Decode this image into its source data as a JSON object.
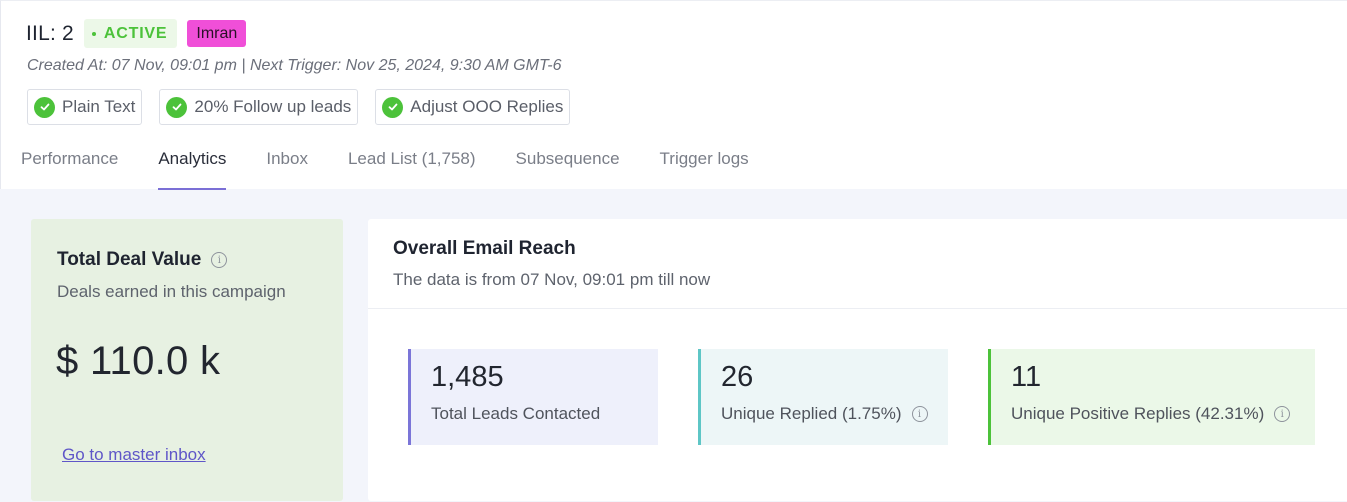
{
  "campaign": {
    "title": "IIL: 2",
    "status": "ACTIVE",
    "tag": "Imran",
    "meta": "Created At: 07 Nov, 09:01 pm | Next Trigger: Nov 25, 2024, 9:30 AM GMT-6",
    "features": [
      {
        "label": "Plain Text"
      },
      {
        "label": "20% Follow up leads"
      },
      {
        "label": "Adjust OOO Replies"
      }
    ]
  },
  "tabs": [
    {
      "label": "Performance",
      "active": false
    },
    {
      "label": "Analytics",
      "active": true
    },
    {
      "label": "Inbox",
      "active": false
    },
    {
      "label": "Lead List (1,758)",
      "active": false
    },
    {
      "label": "Subsequence",
      "active": false
    },
    {
      "label": "Trigger logs",
      "active": false
    }
  ],
  "deal": {
    "title": "Total Deal Value",
    "subtitle": "Deals earned in this campaign",
    "value": "$ 110.0 k",
    "link": "Go to master inbox"
  },
  "reach": {
    "title": "Overall Email Reach",
    "subtitle": "The data is from 07 Nov, 09:01 pm till now",
    "stats": [
      {
        "value": "1,485",
        "label": "Total Leads Contacted",
        "info": false
      },
      {
        "value": "26",
        "label": "Unique Replied (1.75%)",
        "info": true
      },
      {
        "value": "11",
        "label": "Unique Positive Replies (42.31%)",
        "info": true
      }
    ]
  },
  "colors": {
    "accent": "#7b6fd6",
    "active_green": "#4cc23a",
    "tag_pink": "#f04fd8"
  }
}
